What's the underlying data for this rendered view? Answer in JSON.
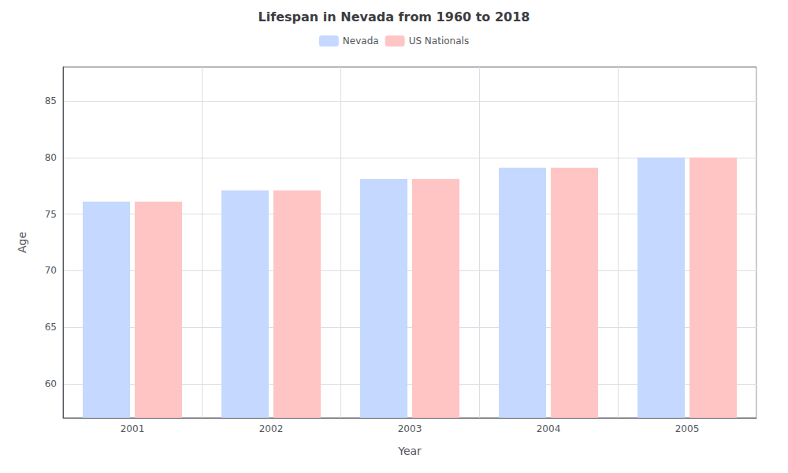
{
  "chart_data": {
    "type": "bar",
    "title": "Lifespan in Nevada from 1960 to 2018",
    "xlabel": "Year",
    "ylabel": "Age",
    "categories": [
      "2001",
      "2002",
      "2003",
      "2004",
      "2005"
    ],
    "series": [
      {
        "name": "Nevada",
        "color": "#c5d8ff",
        "values": [
          76.1,
          77.1,
          78.1,
          79.1,
          80.0
        ]
      },
      {
        "name": "US Nationals",
        "color": "#ffc5c5",
        "values": [
          76.1,
          77.1,
          78.1,
          79.1,
          80.0
        ]
      }
    ],
    "ylim": [
      57,
      88
    ],
    "yticks": [
      60,
      65,
      70,
      75,
      80,
      85
    ],
    "grid": true,
    "legend": "upper center"
  }
}
